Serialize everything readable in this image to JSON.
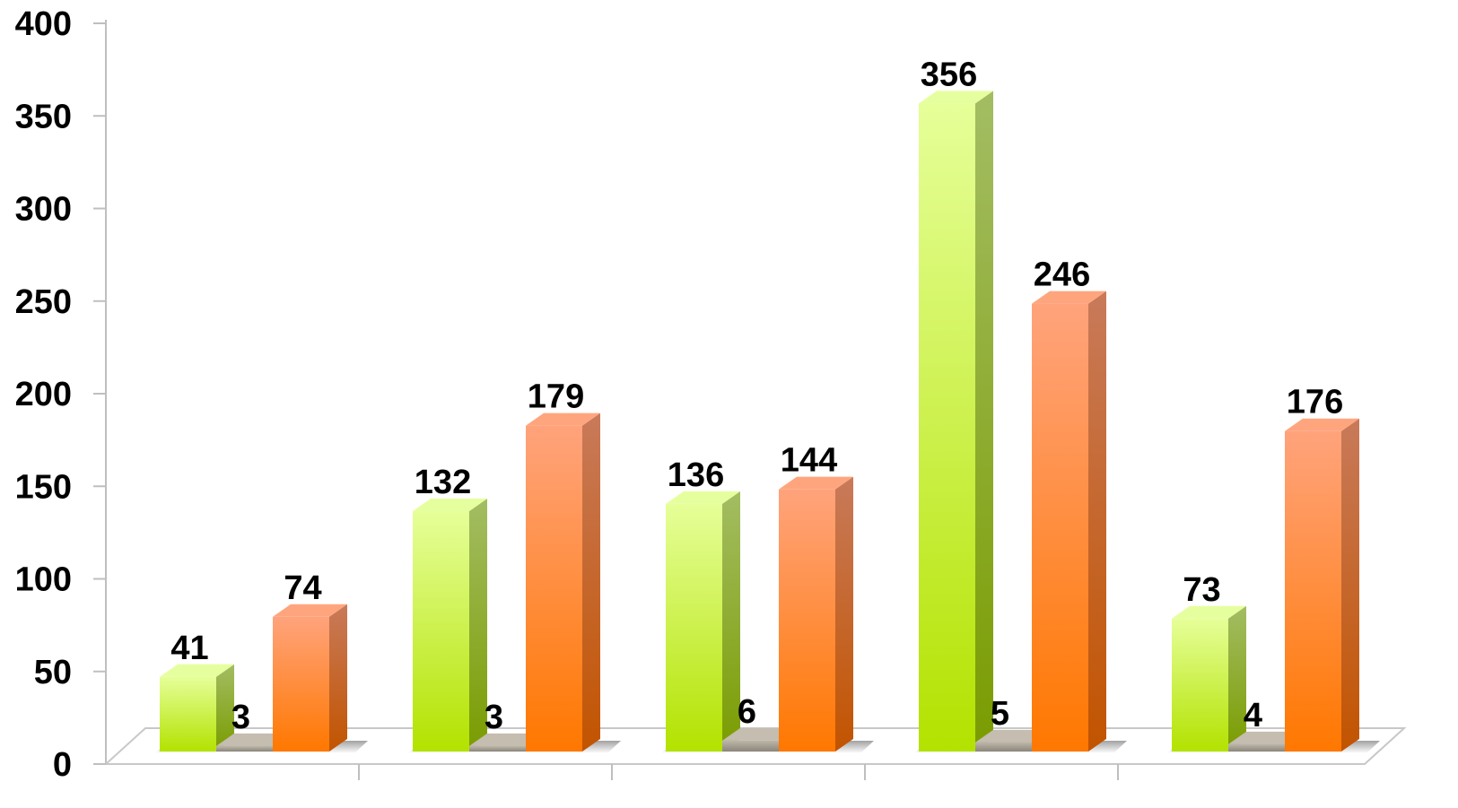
{
  "chart_data": {
    "type": "bar",
    "style": "3d-clustered-column",
    "categories": [
      "",
      "",
      "",
      "",
      ""
    ],
    "series": [
      {
        "values": [
          41,
          132,
          136,
          356,
          73
        ],
        "color": "#b6e400",
        "top_color": "#e6ff9e"
      },
      {
        "values": [
          3,
          3,
          6,
          5,
          4
        ],
        "color": "#9e978a",
        "top_color": "#c4bdb0"
      },
      {
        "values": [
          74,
          179,
          144,
          246,
          176
        ],
        "color": "#ff7a00",
        "top_color": "#ffa57e"
      }
    ],
    "ylim": [
      0,
      400
    ],
    "yticks": [
      "0",
      "50",
      "100",
      "150",
      "200",
      "250",
      "300",
      "350",
      "400"
    ],
    "data_labels": true,
    "grid": false,
    "legend": "none"
  }
}
